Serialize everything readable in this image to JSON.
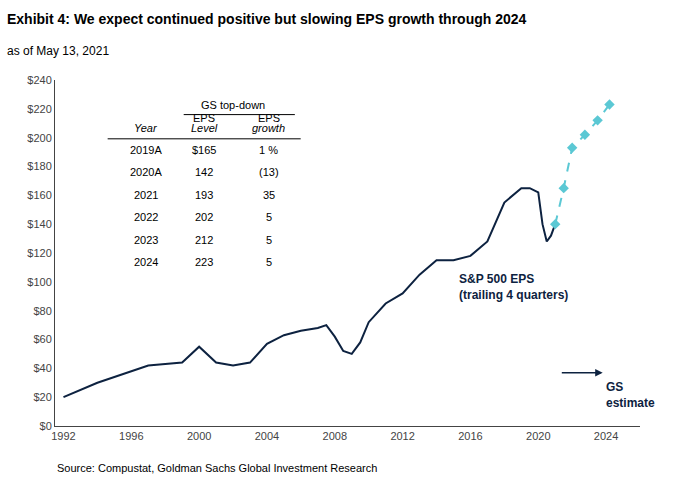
{
  "chart_data": {
    "type": "line",
    "title": "Exhibit 4: We expect continued positive but slowing EPS growth through 2024",
    "subtitle": "as of May 13, 2021",
    "source": "Source: Compustat, Goldman Sachs Global Investment Research",
    "series": [
      {
        "x": [
          1992,
          1993,
          1994,
          1995,
          1996,
          1997,
          1998,
          1999,
          2000,
          2001,
          2002,
          2003,
          2004,
          2005,
          2006,
          2007,
          2007.5,
          2008,
          2008.5,
          2009,
          2009.5,
          2010,
          2011,
          2012,
          2013,
          2014,
          2015,
          2016,
          2017,
          2018,
          2019,
          2019.5,
          2020.0,
          2020.25,
          2020.5,
          2020.75,
          2021.0
        ],
        "values": [
          20,
          25,
          30,
          34,
          38,
          42,
          43,
          44,
          55,
          44,
          42,
          44,
          57,
          63,
          66,
          68,
          70,
          62,
          52,
          50,
          58,
          72,
          85,
          92,
          105,
          115,
          115,
          118,
          128,
          155,
          165,
          165,
          162,
          140,
          128,
          132,
          140
        ],
        "color": "#0d2240",
        "line_style": "solid"
      },
      {
        "x": [
          2021.0,
          2021.5,
          2022.0,
          2022.75,
          2023.5,
          2024.2
        ],
        "values": [
          140,
          165,
          193,
          202,
          212,
          223
        ],
        "color": "#5bc8d4",
        "line_style": "dashed",
        "marker": "diamond"
      }
    ],
    "xlim": [
      1991.5,
      2026
    ],
    "ylim": [
      0,
      240
    ],
    "xticks": [
      1992,
      1996,
      2000,
      2004,
      2008,
      2012,
      2016,
      2020,
      2024
    ],
    "yticks": [
      {
        "value": 0,
        "label": "$0"
      },
      {
        "value": 20,
        "label": "$20"
      },
      {
        "value": 40,
        "label": "$40"
      },
      {
        "value": 60,
        "label": "$60"
      },
      {
        "value": 80,
        "label": "$80"
      },
      {
        "value": 100,
        "label": "$100"
      },
      {
        "value": 120,
        "label": "$120"
      },
      {
        "value": 140,
        "label": "$140"
      },
      {
        "value": 160,
        "label": "$160"
      },
      {
        "value": 180,
        "label": "$180"
      },
      {
        "value": 200,
        "label": "$200"
      },
      {
        "value": 220,
        "label": "$220"
      },
      {
        "value": 240,
        "label": "$240"
      }
    ],
    "grid": false,
    "annotations": [
      {
        "text": "S&P 500 EPS\n(trailing 4 quarters)",
        "x": 2015.2,
        "y": 108,
        "color": "#0d2240"
      },
      {
        "text": "GS\nestimate",
        "x": 2023.9,
        "y": 33,
        "color": "#0d2240",
        "arrow": {
          "from_x": 2021.3,
          "x": 2023.8,
          "y": 37
        }
      }
    ],
    "table": {
      "title": "GS top-down",
      "columns": [
        {
          "headers": [
            "Year"
          ],
          "cells": [
            "2019A",
            "2020A",
            "2021",
            "2022",
            "2023",
            "2024"
          ]
        },
        {
          "headers": [
            "EPS",
            "Level"
          ],
          "cells": [
            "$165",
            "142",
            "193",
            "202",
            "212",
            "223"
          ]
        },
        {
          "headers": [
            "EPS",
            "growth"
          ],
          "cells": [
            "1 %",
            "(13)",
            "35",
            "5",
            "5",
            "5"
          ]
        }
      ]
    }
  }
}
